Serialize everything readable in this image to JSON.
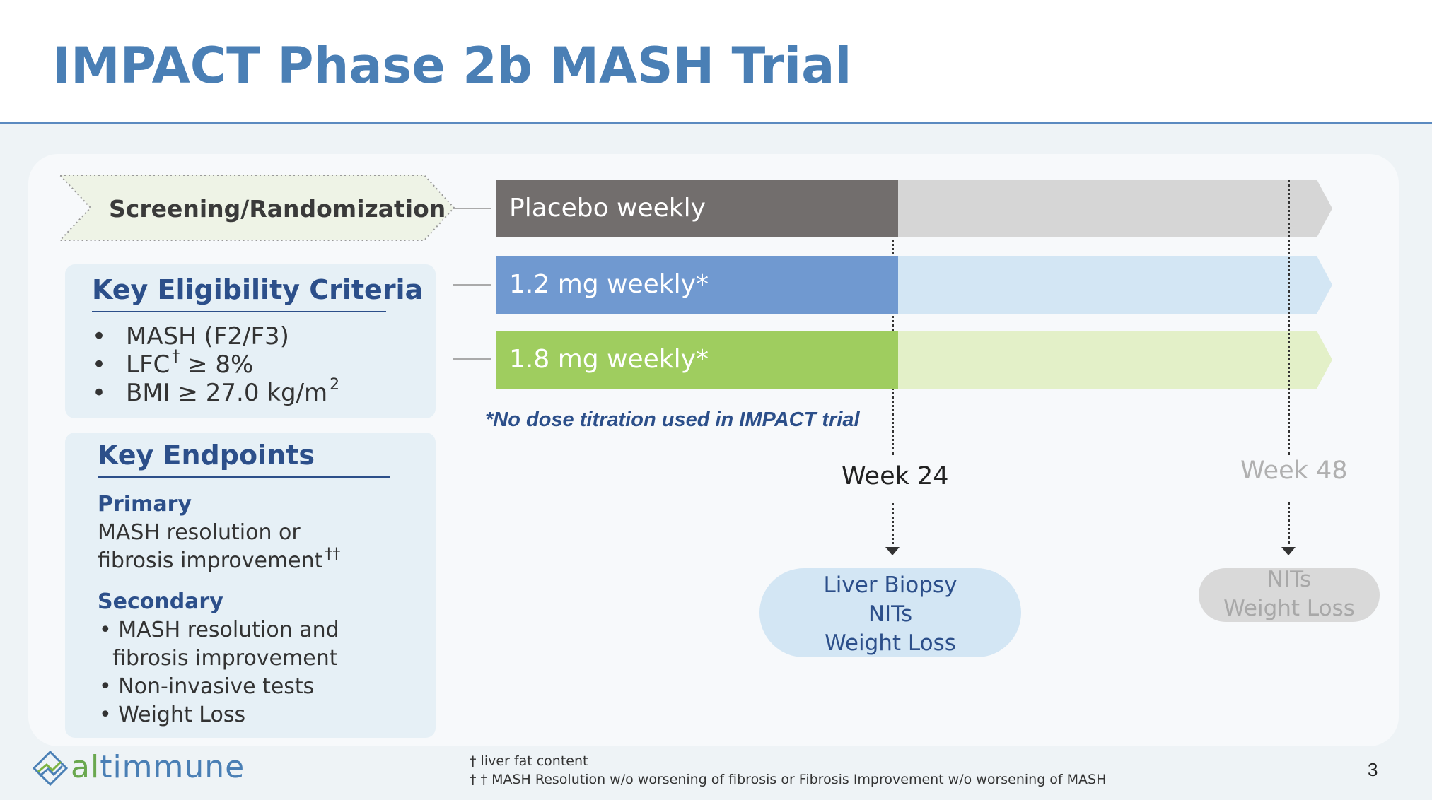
{
  "title": "IMPACT Phase 2b MASH Trial",
  "screening": {
    "label": "Screening/Randomization"
  },
  "eligibility": {
    "title": "Key Eligibility Criteria",
    "items": [
      {
        "bullet": "•",
        "text": "MASH (F2/F3)"
      },
      {
        "bullet": "•",
        "text": "LFC",
        "sup": "†",
        "tail": "≥ 8%"
      },
      {
        "bullet": "•",
        "text": "BMI ≥ 27.0 kg/m",
        "sup": "2"
      }
    ]
  },
  "endpoints": {
    "title": "Key Endpoints",
    "primary_label": "Primary",
    "primary_lines": [
      "MASH resolution or",
      "fibrosis improvement"
    ],
    "primary_sup": "††",
    "secondary_label": "Secondary",
    "secondary_lines": [
      "• MASH resolution and",
      "  fibrosis improvement",
      "• Non-invasive tests",
      "• Weight Loss"
    ]
  },
  "arms": [
    {
      "label": "Placebo weekly",
      "color_dark": "#726e6d",
      "color_light": "#d6d6d6"
    },
    {
      "label": "1.2 mg weekly*",
      "color_dark": "#7099d0",
      "color_light": "#d3e6f4"
    },
    {
      "label": "1.8 mg weekly*",
      "color_dark": "#9fcd5f",
      "color_light": "#e3f0c8"
    }
  ],
  "note": "*No dose titration used in IMPACT trial",
  "timepoints": [
    {
      "label": "Week 24",
      "assessments": [
        "Liver Biopsy",
        "NITs",
        "Weight Loss"
      ]
    },
    {
      "label": "Week 48",
      "assessments": [
        "NITs",
        "Weight Loss"
      ]
    }
  ],
  "logo": {
    "name": "altimmune",
    "icon": "altimmune-logo-icon"
  },
  "footnotes": [
    "† liver fat content",
    "† †  MASH Resolution w/o worsening of fibrosis or Fibrosis Improvement w/o worsening of MASH"
  ],
  "page_number": "3"
}
